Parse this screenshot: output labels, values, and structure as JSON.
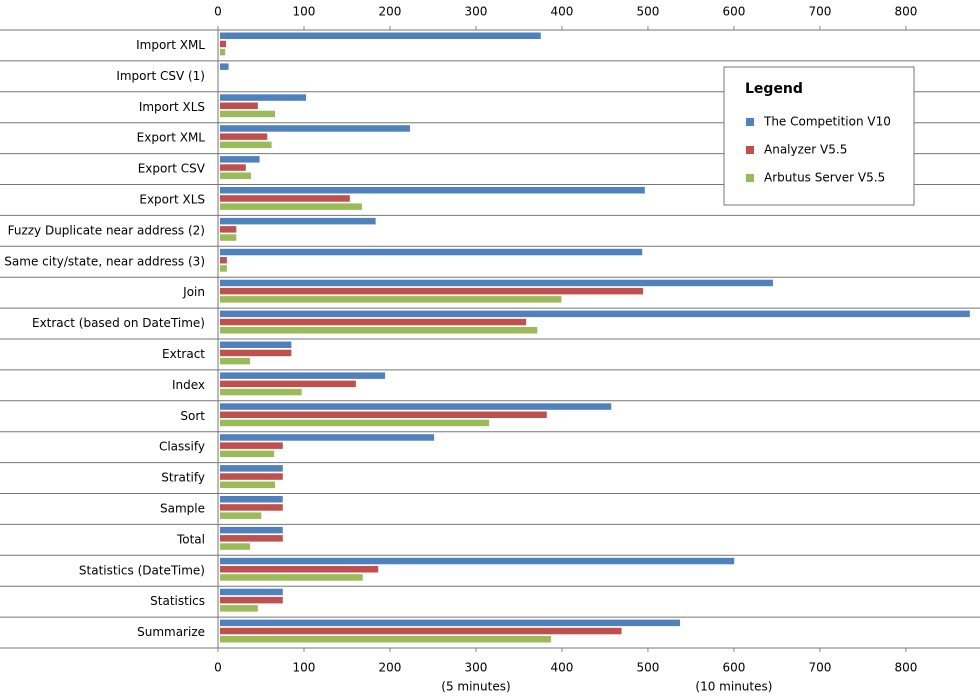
{
  "chart_data": {
    "type": "hbar",
    "categories": [
      "Import XML",
      "Import CSV (1)",
      "Import XLS",
      "Export XML",
      "Export CSV",
      "Export XLS",
      "Fuzzy Duplicate near address (2)",
      "Same city/state, near address (3)",
      "Join",
      "Extract (based on DateTime)",
      "Extract",
      "Index",
      "Sort",
      "Classify",
      "Stratify",
      "Sample",
      "Total",
      "Statistics (DateTime)",
      "Statistics",
      "Summarize"
    ],
    "series": [
      {
        "name": "The Competition V10",
        "color": "#4f81bd",
        "values": [
          373,
          10,
          100,
          221,
          46,
          494,
          181,
          491,
          643,
          872,
          83,
          192,
          455,
          249,
          73,
          73,
          73,
          598,
          73,
          535
        ]
      },
      {
        "name": "Analyzer V5.5",
        "color": "#c0504d",
        "values": [
          7,
          0,
          44,
          55,
          30,
          151,
          19,
          8,
          492,
          356,
          83,
          158,
          380,
          73,
          73,
          73,
          73,
          184,
          73,
          467
        ]
      },
      {
        "name": "Arbutus Server V5.5",
        "color": "#9bbb59",
        "values": [
          6,
          0,
          64,
          60,
          36,
          165,
          19,
          8,
          397,
          369,
          35,
          95,
          313,
          63,
          64,
          48,
          35,
          166,
          44,
          385
        ]
      }
    ],
    "xlim": [
      0,
      885
    ],
    "xticks": [
      0,
      100,
      200,
      300,
      400,
      500,
      600,
      700,
      800
    ],
    "legend_title": "Legend",
    "legend_position": "upper right",
    "annotations": [
      {
        "x": 300,
        "text": "(5 minutes)"
      },
      {
        "x": 600,
        "text": "(10 minutes)"
      }
    ]
  }
}
